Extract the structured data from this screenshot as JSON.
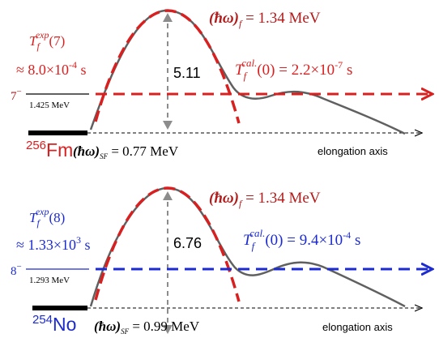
{
  "colors": {
    "dark_red": "#b31b1b",
    "red": "#d92020",
    "blue": "#1c2bd0",
    "curve": "#606060",
    "grey_arrow": "#8c8c8c",
    "black": "#000000"
  },
  "panels": [
    {
      "nucleus_mass": "256",
      "nucleus_symbol": "Fm",
      "barrier_height": "5.11",
      "hw_f_label": "(ħω)",
      "hw_f_sub": "f",
      "hw_f_value": " = 1.34 MeV",
      "tcal_T": "T",
      "tcal_sub": "f",
      "tcal_sup": "cal.",
      "tcal_value": "(0) = 2.2×10",
      "tcal_exp": "-7",
      "tcal_unit": " s",
      "texp_T": "T",
      "texp_sub": "f",
      "texp_sup": "exp",
      "texp_arg": "(7)",
      "texp_value": "≈ 8.0×10",
      "texp_exp": "-4",
      "texp_unit": " s",
      "state_spin": "7",
      "state_parity": "−",
      "state_energy": "1.425 MeV",
      "hw_sf_label": "(ħω)",
      "hw_sf_sub": "SF",
      "hw_sf_value": " = 0.77 MeV",
      "axis_label": "elongation axis"
    },
    {
      "nucleus_mass": "254",
      "nucleus_symbol": "No",
      "barrier_height": "6.76",
      "hw_f_label": "(ħω)",
      "hw_f_sub": "f",
      "hw_f_value": " = 1.34 MeV",
      "tcal_T": "T",
      "tcal_sub": "f",
      "tcal_sup": "cal.",
      "tcal_value": "(0) = 9.4×10",
      "tcal_exp": "-4",
      "tcal_unit": " s",
      "texp_T": "T",
      "texp_sub": "f",
      "texp_sup": "exp",
      "texp_arg": "(8)",
      "texp_value": "≈ 1.33×10",
      "texp_exp": "3",
      "texp_unit": " s",
      "state_spin": "8",
      "state_parity": "−",
      "state_energy": "1.293 MeV",
      "hw_sf_label": "(ħω)",
      "hw_sf_sub": "SF",
      "hw_sf_value": " = 0.99 MeV",
      "axis_label": "elongation axis"
    }
  ]
}
